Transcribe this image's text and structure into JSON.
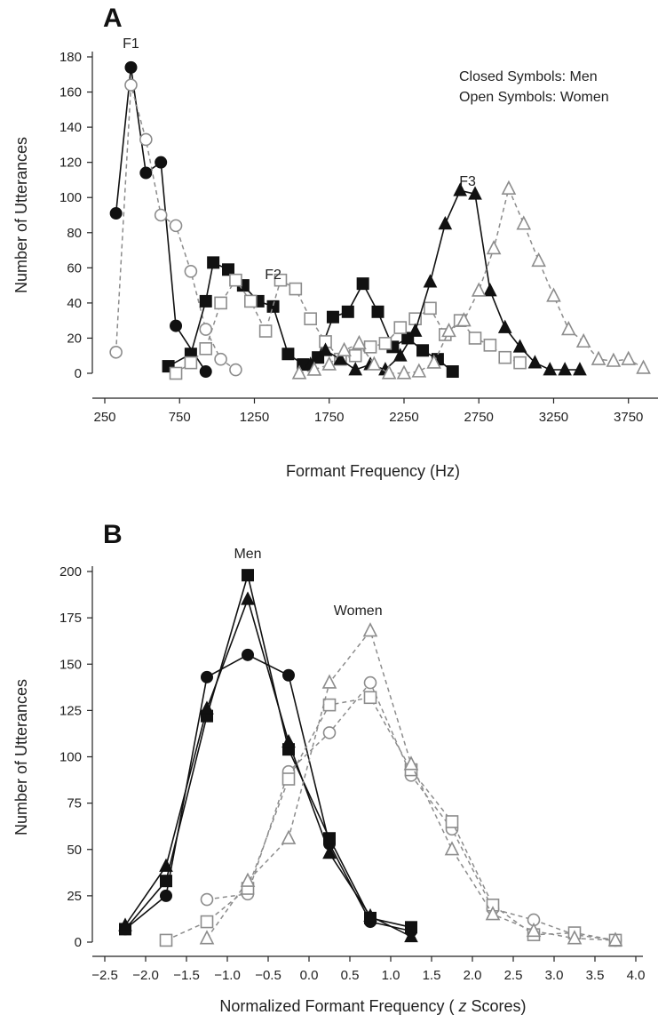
{
  "chart_data": [
    {
      "panel": "A",
      "type": "line",
      "xlabel": "Formant Frequency (Hz)",
      "ylabel": "Number of Utterances",
      "xlim": [
        250,
        3900
      ],
      "ylim": [
        0,
        180
      ],
      "x_ticks": [
        250,
        750,
        1250,
        1750,
        2250,
        2750,
        3250,
        3750
      ],
      "y_ticks": [
        0,
        20,
        40,
        60,
        80,
        100,
        120,
        140,
        160,
        180
      ],
      "annotations": {
        "closed": "Closed Symbols: Men",
        "open": "Open Symbols: Women",
        "f1": "F1",
        "f2": "F2",
        "f3": "F3"
      },
      "series": [
        {
          "formant": "F1",
          "group": "men",
          "marker": "circle",
          "filled": true,
          "x": [
            325,
            425,
            525,
            625,
            725,
            925
          ],
          "y": [
            91,
            174,
            114,
            120,
            27,
            1
          ]
        },
        {
          "formant": "F1",
          "group": "women",
          "marker": "circle",
          "filled": false,
          "x": [
            325,
            425,
            525,
            625,
            725,
            825,
            925,
            1025,
            1125
          ],
          "y": [
            12,
            164,
            133,
            90,
            84,
            58,
            25,
            8,
            2
          ]
        },
        {
          "formant": "F2",
          "group": "men",
          "marker": "square",
          "filled": true,
          "x": [
            675,
            825,
            925,
            975,
            1075,
            1175,
            1275,
            1375,
            1475,
            1575,
            1675,
            1775,
            1875,
            1975,
            2075,
            2175,
            2275,
            2375,
            2475,
            2575
          ],
          "y": [
            4,
            11,
            41,
            63,
            59,
            50,
            41,
            38,
            11,
            5,
            9,
            32,
            35,
            51,
            35,
            15,
            20,
            13,
            8,
            1
          ]
        },
        {
          "formant": "F2",
          "group": "women",
          "marker": "square",
          "filled": false,
          "x": [
            725,
            825,
            925,
            1025,
            1125,
            1225,
            1325,
            1425,
            1525,
            1625,
            1725,
            1825,
            1925,
            2025,
            2125,
            2225,
            2325,
            2425,
            2525,
            2625,
            2725,
            2825,
            2925,
            3025
          ],
          "y": [
            0,
            6,
            14,
            40,
            53,
            41,
            24,
            53,
            48,
            31,
            18,
            8,
            10,
            15,
            17,
            26,
            31,
            37,
            22,
            30,
            20,
            16,
            9,
            6
          ]
        },
        {
          "formant": "F3",
          "group": "men",
          "marker": "triangle",
          "filled": true,
          "x": [
            1625,
            1725,
            1825,
            1925,
            2025,
            2125,
            2225,
            2325,
            2425,
            2525,
            2625,
            2725,
            2825,
            2925,
            3025,
            3125,
            3225,
            3325,
            3425
          ],
          "y": [
            5,
            13,
            8,
            2,
            5,
            2,
            10,
            24,
            52,
            85,
            104,
            102,
            47,
            26,
            15,
            6,
            2,
            2,
            2
          ]
        },
        {
          "formant": "F3",
          "group": "women",
          "marker": "triangle",
          "filled": false,
          "x": [
            1550,
            1650,
            1750,
            1850,
            1950,
            2050,
            2150,
            2250,
            2350,
            2450,
            2550,
            2650,
            2750,
            2850,
            2950,
            3050,
            3150,
            3250,
            3350,
            3450,
            3550,
            3650,
            3750,
            3850
          ],
          "y": [
            0,
            2,
            5,
            13,
            17,
            5,
            0,
            0,
            1,
            6,
            24,
            30,
            47,
            71,
            105,
            85,
            64,
            44,
            25,
            18,
            8,
            7,
            8,
            3
          ]
        }
      ]
    },
    {
      "panel": "B",
      "type": "line",
      "xlabel": "Normalized Formant Frequency (z Scores)",
      "ylabel": "Number of Utterances",
      "xlim": [
        -2.5,
        4.0
      ],
      "ylim": [
        0,
        200
      ],
      "x_ticks": [
        "−2.5",
        "−2.0",
        "−1.5",
        "−1.0",
        "−0.5",
        "0.0",
        "0.5",
        "1.0",
        "1.5",
        "2.0",
        "2.5",
        "3.0",
        "3.5",
        "4.0"
      ],
      "x_tick_values": [
        -2.5,
        -2.0,
        -1.5,
        -1.0,
        -0.5,
        0.0,
        0.5,
        1.0,
        1.5,
        2.0,
        2.5,
        3.0,
        3.5,
        4.0
      ],
      "y_ticks": [
        0,
        25,
        50,
        75,
        100,
        125,
        150,
        175,
        200
      ],
      "annotations": {
        "men": "Men",
        "women": "Women"
      },
      "series": [
        {
          "group": "men",
          "marker": "circle",
          "filled": true,
          "x": [
            -2.25,
            -1.75,
            -1.25,
            -0.75,
            -0.25,
            0.25,
            0.75,
            1.25
          ],
          "y": [
            7,
            25,
            143,
            155,
            144,
            53,
            11,
            6
          ]
        },
        {
          "group": "men",
          "marker": "square",
          "filled": true,
          "x": [
            -2.25,
            -1.75,
            -1.25,
            -0.75,
            -0.25,
            0.25,
            0.75,
            1.25
          ],
          "y": [
            7,
            33,
            122,
            198,
            104,
            56,
            13,
            8
          ]
        },
        {
          "group": "men",
          "marker": "triangle",
          "filled": true,
          "x": [
            -2.25,
            -1.75,
            -1.25,
            -0.75,
            -0.25,
            0.25,
            0.75,
            1.25
          ],
          "y": [
            9,
            41,
            126,
            185,
            108,
            48,
            14,
            3
          ]
        },
        {
          "group": "women",
          "marker": "circle",
          "filled": false,
          "x": [
            -1.25,
            -0.75,
            -0.25,
            0.25,
            0.75,
            1.25,
            1.75,
            2.25,
            2.75,
            3.25,
            3.75
          ],
          "y": [
            23,
            26,
            92,
            113,
            140,
            90,
            61,
            18,
            12,
            4,
            1
          ]
        },
        {
          "group": "women",
          "marker": "square",
          "filled": false,
          "x": [
            -1.75,
            -1.25,
            -0.75,
            -0.25,
            0.25,
            0.75,
            1.25,
            1.75,
            2.25,
            2.75,
            3.25,
            3.75
          ],
          "y": [
            1,
            11,
            29,
            88,
            128,
            132,
            93,
            65,
            20,
            4,
            5,
            1
          ]
        },
        {
          "group": "women",
          "marker": "triangle",
          "filled": false,
          "x": [
            -1.25,
            -0.75,
            -0.25,
            0.25,
            0.75,
            1.25,
            1.75,
            2.25,
            2.75,
            3.25,
            3.75
          ],
          "y": [
            2,
            33,
            56,
            140,
            168,
            96,
            50,
            15,
            6,
            2,
            1
          ]
        }
      ]
    }
  ],
  "panels": {
    "a": {
      "letter": "A"
    },
    "b": {
      "letter": "B"
    }
  },
  "colors": {
    "men": "#111111",
    "women": "#8c8c8c"
  }
}
